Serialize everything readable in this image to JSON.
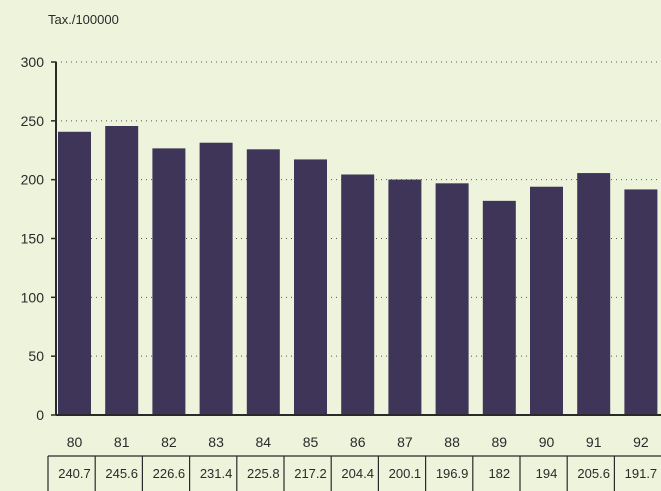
{
  "chart_data": {
    "type": "bar",
    "ylabel": "Tax./100000",
    "categories": [
      "80",
      "81",
      "82",
      "83",
      "84",
      "85",
      "86",
      "87",
      "88",
      "89",
      "90",
      "91",
      "92"
    ],
    "values": [
      240.7,
      245.6,
      226.6,
      231.4,
      225.8,
      217.2,
      204.4,
      200.1,
      196.9,
      182,
      194,
      205.6,
      191.7
    ],
    "value_labels": [
      "240.7",
      "245.6",
      "226.6",
      "231.4",
      "225.8",
      "217.2",
      "204.4",
      "200.1",
      "196.9",
      "182",
      "194",
      "205.6",
      "191.7"
    ],
    "ylim": [
      0,
      300
    ],
    "yticks": [
      "0",
      "50",
      "100",
      "150",
      "200",
      "250",
      "300"
    ],
    "grid": "dotted horizontal at each tick",
    "colors": {
      "bar": "#3f3559",
      "axis": "#2a2a2a",
      "background": "#eef3dc"
    }
  }
}
